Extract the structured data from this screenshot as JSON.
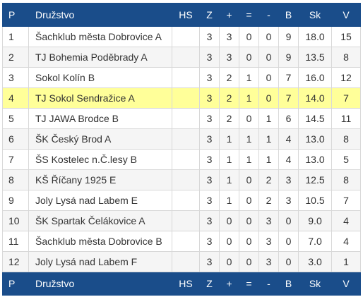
{
  "columns": {
    "pos": "P",
    "team": "Družstvo",
    "hs": "HS",
    "z": "Z",
    "plus": "+",
    "eq": "=",
    "minus": "-",
    "b": "B",
    "sk": "Sk",
    "v": "V"
  },
  "rows": [
    {
      "pos": "1",
      "team": "Šachklub města Dobrovice A",
      "hs": "",
      "z": "3",
      "plus": "3",
      "eq": "0",
      "minus": "0",
      "b": "9",
      "sk": "18.0",
      "v": "15",
      "highlight": false
    },
    {
      "pos": "2",
      "team": "TJ Bohemia Poděbrady A",
      "hs": "",
      "z": "3",
      "plus": "3",
      "eq": "0",
      "minus": "0",
      "b": "9",
      "sk": "13.5",
      "v": "8",
      "highlight": false
    },
    {
      "pos": "3",
      "team": "Sokol Kolín B",
      "hs": "",
      "z": "3",
      "plus": "2",
      "eq": "1",
      "minus": "0",
      "b": "7",
      "sk": "16.0",
      "v": "12",
      "highlight": false
    },
    {
      "pos": "4",
      "team": "TJ Sokol Sendražice A",
      "hs": "",
      "z": "3",
      "plus": "2",
      "eq": "1",
      "minus": "0",
      "b": "7",
      "sk": "14.0",
      "v": "7",
      "highlight": true
    },
    {
      "pos": "5",
      "team": "TJ JAWA Brodce B",
      "hs": "",
      "z": "3",
      "plus": "2",
      "eq": "0",
      "minus": "1",
      "b": "6",
      "sk": "14.5",
      "v": "11",
      "highlight": false
    },
    {
      "pos": "6",
      "team": "ŠK Český Brod A",
      "hs": "",
      "z": "3",
      "plus": "1",
      "eq": "1",
      "minus": "1",
      "b": "4",
      "sk": "13.0",
      "v": "8",
      "highlight": false
    },
    {
      "pos": "7",
      "team": "ŠS Kostelec n.Č.lesy B",
      "hs": "",
      "z": "3",
      "plus": "1",
      "eq": "1",
      "minus": "1",
      "b": "4",
      "sk": "13.0",
      "v": "5",
      "highlight": false
    },
    {
      "pos": "8",
      "team": "KŠ Říčany 1925 E",
      "hs": "",
      "z": "3",
      "plus": "1",
      "eq": "0",
      "minus": "2",
      "b": "3",
      "sk": "12.5",
      "v": "8",
      "highlight": false
    },
    {
      "pos": "9",
      "team": "Joly Lysá nad Labem E",
      "hs": "",
      "z": "3",
      "plus": "1",
      "eq": "0",
      "minus": "2",
      "b": "3",
      "sk": "10.5",
      "v": "7",
      "highlight": false
    },
    {
      "pos": "10",
      "team": "ŠK Spartak Čelákovice A",
      "hs": "",
      "z": "3",
      "plus": "0",
      "eq": "0",
      "minus": "3",
      "b": "0",
      "sk": "9.0",
      "v": "4",
      "highlight": false
    },
    {
      "pos": "11",
      "team": "Šachklub města Dobrovice B",
      "hs": "",
      "z": "3",
      "plus": "0",
      "eq": "0",
      "minus": "3",
      "b": "0",
      "sk": "7.0",
      "v": "4",
      "highlight": false
    },
    {
      "pos": "12",
      "team": "Joly Lysá nad Labem F",
      "hs": "",
      "z": "3",
      "plus": "0",
      "eq": "0",
      "minus": "3",
      "b": "0",
      "sk": "3.0",
      "v": "1",
      "highlight": false
    }
  ],
  "colors": {
    "header_bg": "#1a4d8a",
    "header_text": "#ffffff",
    "highlight_row": "#ffff99",
    "stripe_row": "#f5f5f5"
  }
}
